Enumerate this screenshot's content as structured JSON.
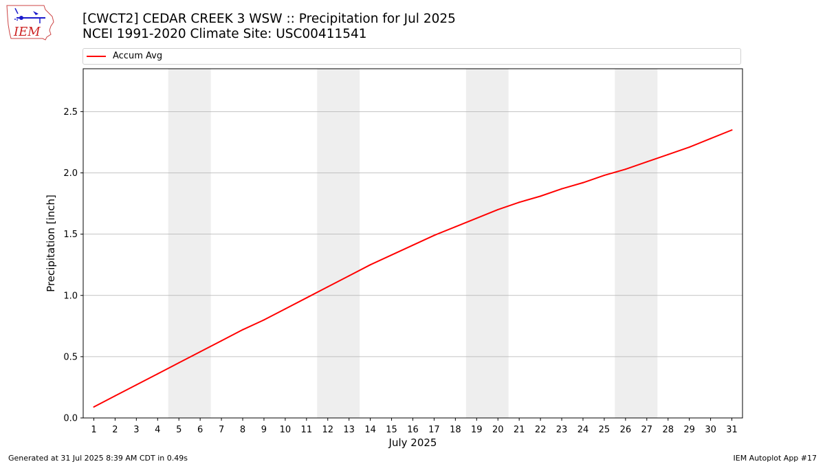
{
  "header": {
    "title_line1": "[CWCT2] CEDAR CREEK 3 WSW :: Precipitation for Jul 2025",
    "title_line2": "NCEI 1991-2020 Climate Site: USC00411541"
  },
  "logo": {
    "text": "IEM",
    "icon": "iem-iowa-logo-icon"
  },
  "colors": {
    "series": "#ff0000",
    "weekend_band": "#eeeeee",
    "grid": "#b0b0b0",
    "logo_text": "#cc2222",
    "logo_symbol": "#1a1acc"
  },
  "chart_data": {
    "type": "line",
    "xlabel": "July 2025",
    "ylabel": "Precipitation [inch]",
    "xlim": [
      0.5,
      31.5
    ],
    "ylim": [
      0,
      2.85
    ],
    "yticks": [
      0.0,
      0.5,
      1.0,
      1.5,
      2.0,
      2.5
    ],
    "ytick_labels": [
      "0.0",
      "0.5",
      "1.0",
      "1.5",
      "2.0",
      "2.5"
    ],
    "x": [
      1,
      2,
      3,
      4,
      5,
      6,
      7,
      8,
      9,
      10,
      11,
      12,
      13,
      14,
      15,
      16,
      17,
      18,
      19,
      20,
      21,
      22,
      23,
      24,
      25,
      26,
      27,
      28,
      29,
      30,
      31
    ],
    "xtick_labels": [
      "1",
      "2",
      "3",
      "4",
      "5",
      "6",
      "7",
      "8",
      "9",
      "10",
      "11",
      "12",
      "13",
      "14",
      "15",
      "16",
      "17",
      "18",
      "19",
      "20",
      "21",
      "22",
      "23",
      "24",
      "25",
      "26",
      "27",
      "28",
      "29",
      "30",
      "31"
    ],
    "grid": "horizontal",
    "legend_position": "top",
    "weekend_bands": [
      [
        4.5,
        6.5
      ],
      [
        11.5,
        13.5
      ],
      [
        18.5,
        20.5
      ],
      [
        25.5,
        27.5
      ]
    ],
    "series": [
      {
        "name": "Accum Avg",
        "values": [
          0.09,
          0.18,
          0.27,
          0.36,
          0.45,
          0.54,
          0.63,
          0.72,
          0.8,
          0.89,
          0.98,
          1.07,
          1.16,
          1.25,
          1.33,
          1.41,
          1.49,
          1.56,
          1.63,
          1.7,
          1.76,
          1.81,
          1.87,
          1.92,
          1.98,
          2.03,
          2.09,
          2.15,
          2.21,
          2.28,
          2.35
        ]
      }
    ]
  },
  "footer": {
    "generated": "Generated at 31 Jul 2025 8:39 AM CDT in 0.49s",
    "app": "IEM Autoplot App #17"
  }
}
